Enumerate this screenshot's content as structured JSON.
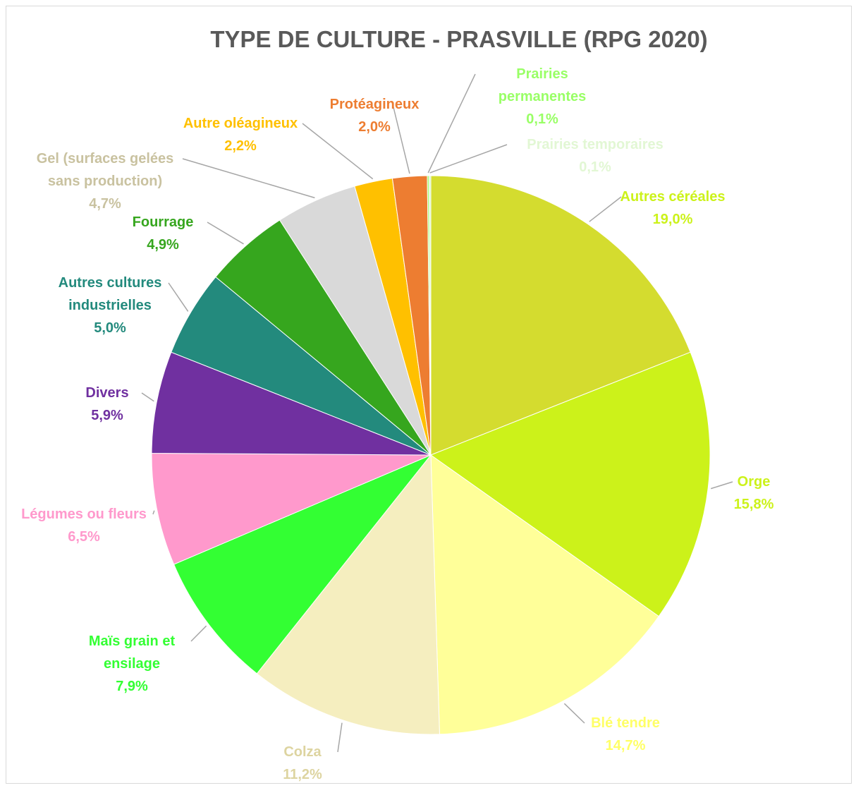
{
  "chart_data": {
    "type": "pie",
    "title": "TYPE DE CULTURE - PRASVILLE (RPG 2020)",
    "categories": [
      "Autres céréales",
      "Orge",
      "Blé tendre",
      "Colza",
      "Maïs grain et ensilage",
      "Légumes ou fleurs",
      "Divers",
      "Autres cultures industrielles",
      "Fourrage",
      "Gel (surfaces gelées sans production)",
      "Autre oléagineux",
      "Protéagineux",
      "Prairies permanentes",
      "Prairies temporaires"
    ],
    "values": [
      19.0,
      15.8,
      14.7,
      11.2,
      7.9,
      6.5,
      5.9,
      5.0,
      4.9,
      4.7,
      2.2,
      2.0,
      0.1,
      0.1
    ],
    "value_labels": [
      "19,0%",
      "15,8%",
      "14,7%",
      "11,2%",
      "7,9%",
      "6,5%",
      "5,9%",
      "5,0%",
      "4,9%",
      "4,7%",
      "2,2%",
      "2,0%",
      "0,1%",
      "0,1%"
    ],
    "colors": [
      "#d4dc2f",
      "#ccf21a",
      "#ffff99",
      "#f5eebf",
      "#33ff33",
      "#ff99cc",
      "#7030a0",
      "#238a7d",
      "#36a61e",
      "#d9d9d9",
      "#ffc000",
      "#ed7d31",
      "#99ff66",
      "#d4f5c4"
    ],
    "label_colors": [
      "#ccf21a",
      "#ccf21a",
      "#ffff66",
      "#ddd4a0",
      "#33ff33",
      "#ff99cc",
      "#7030a0",
      "#238a7d",
      "#36a61e",
      "#c9c2a0",
      "#ffc000",
      "#ed7d31",
      "#99ff66",
      "#e2f7d4"
    ],
    "start_angle": "12 o'clock",
    "direction": "clockwise",
    "legend": "none"
  }
}
